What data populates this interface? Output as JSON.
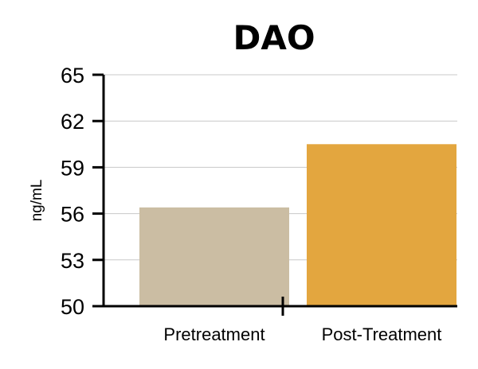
{
  "chart_data": {
    "type": "bar",
    "title": "DAO",
    "ylabel": "ng/mL",
    "xlabel": "",
    "categories": [
      "Pretreatment",
      "Post-Treatment"
    ],
    "values": [
      56.4,
      60.5
    ],
    "ylim": [
      50,
      65
    ],
    "yticks": [
      50,
      53,
      56,
      59,
      62,
      65
    ],
    "grid": true,
    "colors": [
      "#cbbda3",
      "#e3a63f"
    ]
  }
}
